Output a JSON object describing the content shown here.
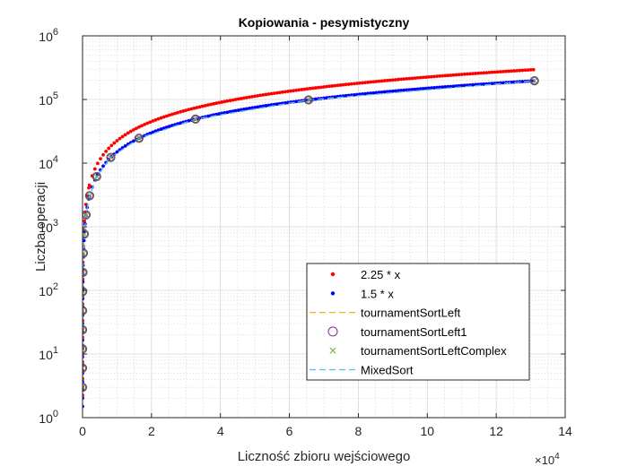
{
  "chart_data": {
    "type": "line",
    "title": "Kopiowania - pesymistyczny",
    "xlabel": "Liczność zbioru wejściowego",
    "ylabel": "Liczba operacji",
    "x_exponent_label": "×10",
    "x_exponent_power": "4",
    "xlim": [
      0,
      140000
    ],
    "ylim": [
      1,
      1000000
    ],
    "yscale": "log",
    "grid": true,
    "legend_position": "lower-right",
    "x_ticks": [
      {
        "value": 0,
        "label": "0"
      },
      {
        "value": 20000,
        "label": "2"
      },
      {
        "value": 40000,
        "label": "4"
      },
      {
        "value": 60000,
        "label": "6"
      },
      {
        "value": 80000,
        "label": "8"
      },
      {
        "value": 100000,
        "label": "10"
      },
      {
        "value": 120000,
        "label": "12"
      },
      {
        "value": 140000,
        "label": "14"
      }
    ],
    "y_ticks": [
      {
        "value": 1,
        "base": "10",
        "exp": "0"
      },
      {
        "value": 10,
        "base": "10",
        "exp": "1"
      },
      {
        "value": 100,
        "base": "10",
        "exp": "2"
      },
      {
        "value": 1000,
        "base": "10",
        "exp": "3"
      },
      {
        "value": 10000,
        "base": "10",
        "exp": "4"
      },
      {
        "value": 100000,
        "base": "10",
        "exp": "5"
      },
      {
        "value": 1000000,
        "base": "10",
        "exp": "6"
      }
    ],
    "x": [
      2,
      4,
      8,
      16,
      32,
      64,
      128,
      256,
      512,
      1024,
      2048,
      4096,
      8192,
      16384,
      32768,
      65536,
      131072
    ],
    "series": [
      {
        "name": "2.25 * x",
        "style": "dotted-curve",
        "color": "#ff0000",
        "factor": 2.25
      },
      {
        "name": "1.5 * x",
        "style": "dotted-curve",
        "color": "#0000ff",
        "factor": 1.5
      },
      {
        "name": "tournamentSortLeft",
        "style": "dashed",
        "color": "#edb120",
        "values": [
          3,
          6,
          12,
          24,
          48,
          96,
          192,
          384,
          768,
          1536,
          3072,
          6144,
          12288,
          24576,
          49152,
          98304,
          196608
        ]
      },
      {
        "name": "tournamentSortLeft1",
        "style": "circle",
        "color": "#7e2f8e",
        "values": [
          3,
          6,
          12,
          24,
          48,
          96,
          192,
          384,
          768,
          1536,
          3072,
          6144,
          12288,
          24576,
          49152,
          98304,
          196608
        ]
      },
      {
        "name": "tournamentSortLeftComplex",
        "style": "x",
        "color": "#77ac30",
        "values": [
          3,
          6,
          12,
          24,
          48,
          96,
          192,
          384,
          768,
          1536,
          3072,
          6144,
          12288,
          24576,
          49152,
          98304,
          196608
        ]
      },
      {
        "name": "MixedSort",
        "style": "dashed",
        "color": "#4dbeee",
        "values": [
          3,
          6,
          12,
          24,
          48,
          96,
          192,
          384,
          768,
          1536,
          3072,
          6144,
          12288,
          24576,
          49152,
          98304,
          196608
        ]
      }
    ],
    "gray_markers": {
      "color": "#555555",
      "x": [
        2,
        4,
        8,
        16,
        32,
        64,
        128,
        256,
        512,
        1024,
        2048,
        4096,
        8192,
        16384,
        32768,
        65536,
        131072
      ],
      "values": [
        3,
        6,
        12,
        24,
        48,
        96,
        192,
        384,
        768,
        1536,
        3072,
        6144,
        12288,
        24576,
        49152,
        98304,
        196608
      ]
    }
  }
}
